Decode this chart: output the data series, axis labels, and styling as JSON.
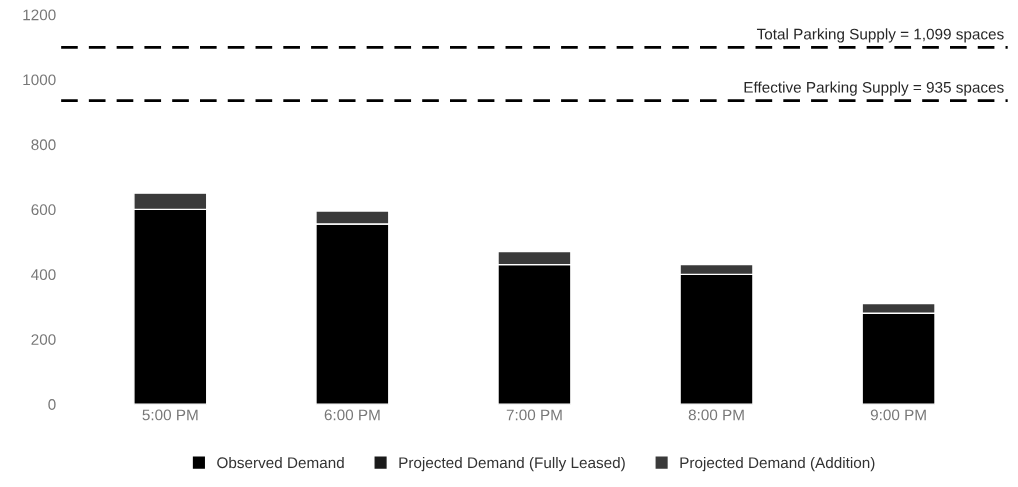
{
  "chart_data": {
    "type": "bar",
    "stacked": true,
    "categories": [
      "5:00 PM",
      "6:00 PM",
      "7:00 PM",
      "8:00 PM",
      "9:00 PM"
    ],
    "series": [
      {
        "name": "Observed Demand",
        "color": "#000000",
        "values": [
          600,
          555,
          430,
          400,
          280
        ]
      },
      {
        "name": "Projected Demand (Fully Leased)",
        "color": "#1a1a1a",
        "values": [
          null,
          null,
          null,
          null,
          null
        ]
      },
      {
        "name": "Projected Demand (Addition)",
        "color": "#3a3a3a",
        "values": [
          50,
          40,
          40,
          30,
          30
        ]
      }
    ],
    "ylim": [
      0,
      1200
    ],
    "yticks": [
      0,
      200,
      400,
      600,
      800,
      1000,
      1200
    ],
    "ref_lines": [
      {
        "axis": "y",
        "value": 1099,
        "label": "Total Parking Supply = 1,099 spaces",
        "color": "#000000",
        "line_style": "dashed"
      },
      {
        "axis": "y",
        "value": 935,
        "label": "Effective Parking Supply = 935 spaces",
        "color": "#000000",
        "line_style": "dashed"
      }
    ],
    "grid": false,
    "legend": "bottom"
  }
}
